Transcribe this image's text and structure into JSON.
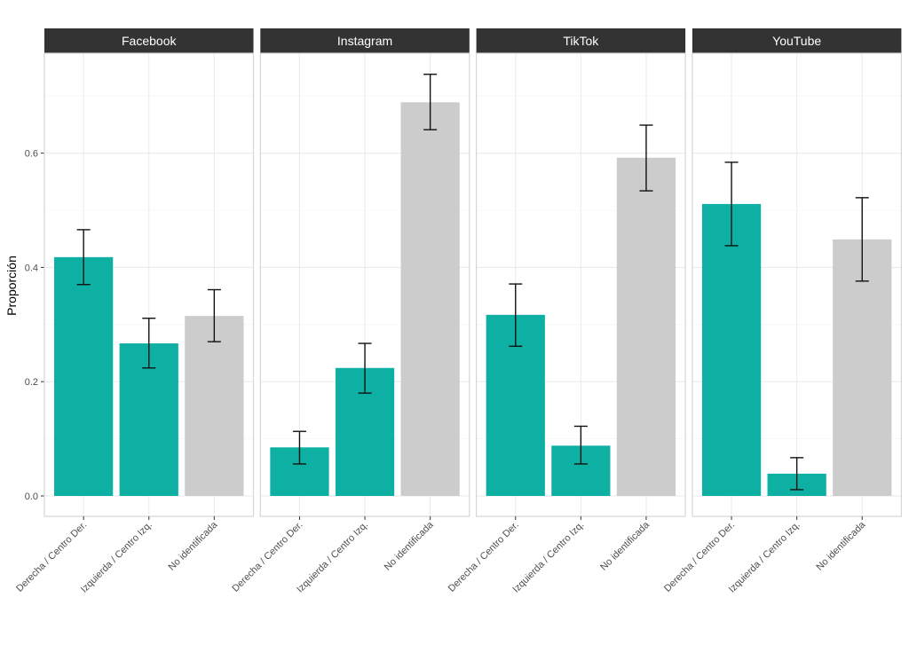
{
  "chart_data": {
    "type": "bar",
    "title": "",
    "xlabel": "",
    "ylabel": "Proporción",
    "ylim": [
      -0.035,
      0.775
    ],
    "yticks": [
      0.0,
      0.2,
      0.4,
      0.6
    ],
    "ytick_labels": [
      "0.0",
      "0.2",
      "0.4",
      "0.6"
    ],
    "grid": true,
    "legend": "none",
    "categories": [
      "Derecha / Centro Der.",
      "Izquierda / Centro Izq.",
      "No identificada"
    ],
    "category_colors": [
      "#0DB0A2",
      "#0DB0A2",
      "#CCCCCC"
    ],
    "facets": [
      {
        "name": "Facebook",
        "values": [
          0.418,
          0.267,
          0.315
        ],
        "lower": [
          0.37,
          0.224,
          0.27
        ],
        "upper": [
          0.466,
          0.311,
          0.361
        ]
      },
      {
        "name": "Instagram",
        "values": [
          0.085,
          0.224,
          0.689
        ],
        "lower": [
          0.056,
          0.18,
          0.641
        ],
        "upper": [
          0.113,
          0.267,
          0.738
        ]
      },
      {
        "name": "TikTok",
        "values": [
          0.317,
          0.088,
          0.592
        ],
        "lower": [
          0.262,
          0.056,
          0.534
        ],
        "upper": [
          0.371,
          0.122,
          0.649
        ]
      },
      {
        "name": "YouTube",
        "values": [
          0.511,
          0.039,
          0.449
        ],
        "lower": [
          0.438,
          0.011,
          0.376
        ],
        "upper": [
          0.584,
          0.067,
          0.522
        ]
      }
    ]
  }
}
